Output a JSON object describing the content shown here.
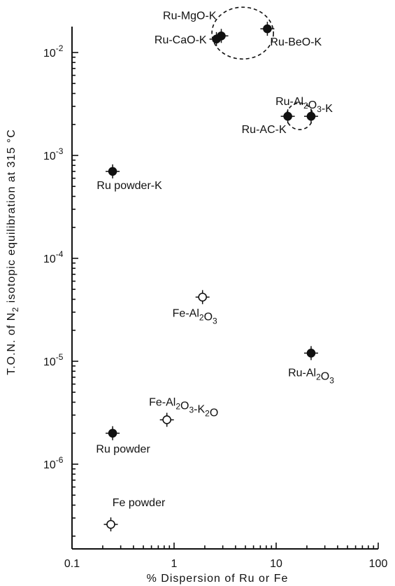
{
  "chart_data": {
    "type": "scatter",
    "title": "",
    "xlabel": "% Dispersion of Ru or Fe",
    "ylabel": "T.O.N. of N2 isotopic equilibration at 315 °C",
    "xscale": "log",
    "yscale": "log",
    "xlim": [
      0.1,
      100
    ],
    "ylim": [
      1.5e-07,
      0.025
    ],
    "grid": false,
    "x_ticks": [
      {
        "value": 0.1,
        "label": "0.1"
      },
      {
        "value": 1,
        "label": "1"
      },
      {
        "value": 10,
        "label": "10"
      },
      {
        "value": 100,
        "label": "100"
      }
    ],
    "y_ticks": [
      {
        "value": 1e-06,
        "base": "10",
        "exp": "-6"
      },
      {
        "value": 1e-05,
        "base": "10",
        "exp": "-5"
      },
      {
        "value": 0.0001,
        "base": "10",
        "exp": "-4"
      },
      {
        "value": 0.001,
        "base": "10",
        "exp": "-3"
      },
      {
        "value": 0.01,
        "base": "10",
        "exp": "-2"
      }
    ],
    "markers": {
      "filled": "Ru",
      "open": "Fe"
    },
    "points": [
      {
        "label": "Ru-MgO-K",
        "x": 2.9,
        "y": 0.0145,
        "filled": true,
        "label_pos": "above-left"
      },
      {
        "label": "Ru-CaO-K",
        "x": 2.6,
        "y": 0.0135,
        "filled": true,
        "label_pos": "left"
      },
      {
        "label": "Ru-BeO-K",
        "x": 8.2,
        "y": 0.017,
        "filled": true,
        "label_pos": "below-right"
      },
      {
        "label": "Ru-Al2O3-K",
        "x": 22,
        "y": 0.0024,
        "filled": true,
        "label_pos": "above"
      },
      {
        "label": "Ru-AC-K",
        "x": 13,
        "y": 0.0024,
        "filled": true,
        "label_pos": "below-left"
      },
      {
        "label": "Ru powder-K",
        "x": 0.25,
        "y": 0.0007,
        "filled": true,
        "label_pos": "below"
      },
      {
        "label": "Fe-Al2O3",
        "x": 1.9,
        "y": 4.2e-05,
        "filled": false,
        "label_pos": "below"
      },
      {
        "label": "Ru-Al2O3",
        "x": 22,
        "y": 1.2e-05,
        "filled": true,
        "label_pos": "below"
      },
      {
        "label": "Fe-Al2O3-K2O",
        "x": 0.85,
        "y": 2.7e-06,
        "filled": false,
        "label_pos": "above"
      },
      {
        "label": "Ru powder",
        "x": 0.25,
        "y": 2e-06,
        "filled": true,
        "label_pos": "below"
      },
      {
        "label": "Fe powder",
        "x": 0.24,
        "y": 2.6e-07,
        "filled": false,
        "label_pos": "above"
      }
    ],
    "groups": [
      {
        "name": "Ru-MgO-K / Ru-CaO-K / Ru-BeO-K",
        "center_x": 4.7,
        "center_y": 0.0145
      },
      {
        "name": "Ru-Al2O3-K / Ru-AC-K",
        "center_x": 17,
        "center_y": 0.0024
      }
    ]
  }
}
